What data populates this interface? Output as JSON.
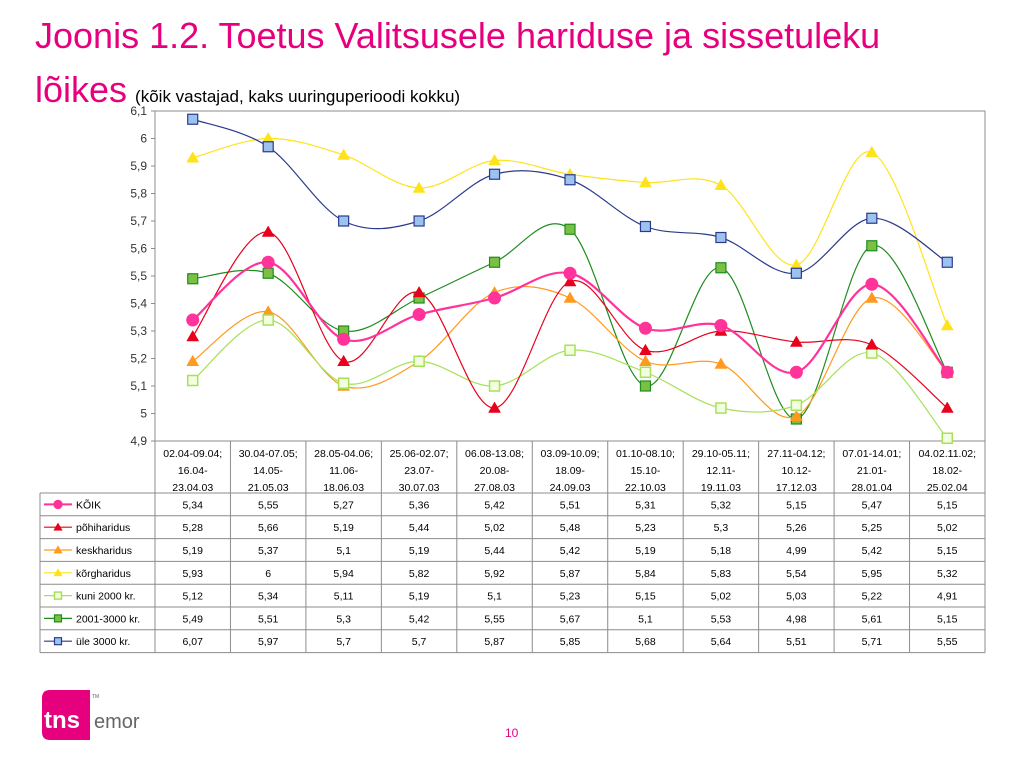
{
  "title": {
    "line1": "Joonis 1.2. Toetus Valitsusele hariduse ja sissetuleku",
    "line2": "lõikes",
    "subtitle": "(kõik vastajad, kaks uuringuperioodi kokku)"
  },
  "page_number": "10",
  "logo": {
    "left": "tns",
    "right": "emor",
    "tm": "TM"
  },
  "colors": {
    "accent": "#e6007e"
  },
  "chart_data": {
    "type": "line",
    "ylim": [
      4.9,
      6.1
    ],
    "yticks": [
      "4,9",
      "5",
      "5,1",
      "5,2",
      "5,3",
      "5,4",
      "5,5",
      "5,6",
      "5,7",
      "5,8",
      "5,9",
      "6",
      "6,1"
    ],
    "categories": [
      [
        "02.04-09.04;",
        "16.04-",
        "23.04.03"
      ],
      [
        "30.04-07.05;",
        "14.05-",
        "21.05.03"
      ],
      [
        "28.05-04.06;",
        "11.06-",
        "18.06.03"
      ],
      [
        "25.06-02.07;",
        "23.07-",
        "30.07.03"
      ],
      [
        "06.08-13.08;",
        "20.08-",
        "27.08.03"
      ],
      [
        "03.09-10.09;",
        "18.09-",
        "24.09.03"
      ],
      [
        "01.10-08.10;",
        "15.10-",
        "22.10.03"
      ],
      [
        "29.10-05.11;",
        "12.11-",
        "19.11.03"
      ],
      [
        "27.11-04.12;",
        "10.12-",
        "17.12.03"
      ],
      [
        "07.01-14.01;",
        "21.01-",
        "28.01.04"
      ],
      [
        "04.02.11.02;",
        "18.02-",
        "25.02.04"
      ]
    ],
    "series": [
      {
        "name": "KÕIK",
        "color": "#ff3399",
        "marker": "circle",
        "values": [
          5.34,
          5.55,
          5.27,
          5.36,
          5.42,
          5.51,
          5.31,
          5.32,
          5.15,
          5.47,
          5.15
        ],
        "labels": [
          "5,34",
          "5,55",
          "5,27",
          "5,36",
          "5,42",
          "5,51",
          "5,31",
          "5,32",
          "5,15",
          "5,47",
          "5,15"
        ]
      },
      {
        "name": "põhiharidus",
        "color": "#e8001c",
        "marker": "triangle",
        "values": [
          5.28,
          5.66,
          5.19,
          5.44,
          5.02,
          5.48,
          5.23,
          5.3,
          5.26,
          5.25,
          5.02
        ],
        "labels": [
          "5,28",
          "5,66",
          "5,19",
          "5,44",
          "5,02",
          "5,48",
          "5,23",
          "5,3",
          "5,26",
          "5,25",
          "5,02"
        ]
      },
      {
        "name": "keskharidus",
        "color": "#ff9a1f",
        "marker": "triangle",
        "values": [
          5.19,
          5.37,
          5.1,
          5.19,
          5.44,
          5.42,
          5.19,
          5.18,
          4.99,
          5.42,
          5.15
        ],
        "labels": [
          "5,19",
          "5,37",
          "5,1",
          "5,19",
          "5,44",
          "5,42",
          "5,19",
          "5,18",
          "4,99",
          "5,42",
          "5,15"
        ]
      },
      {
        "name": "kõrgharidus",
        "color": "#ffe31a",
        "marker": "triangle",
        "values": [
          5.93,
          6,
          5.94,
          5.82,
          5.92,
          5.87,
          5.84,
          5.83,
          5.54,
          5.95,
          5.32
        ],
        "labels": [
          "5,93",
          "6",
          "5,94",
          "5,82",
          "5,92",
          "5,87",
          "5,84",
          "5,83",
          "5,54",
          "5,95",
          "5,32"
        ]
      },
      {
        "name": "kuni 2000 kr.",
        "color": "#a8e05a",
        "marker": "square-open",
        "values": [
          5.12,
          5.34,
          5.11,
          5.19,
          5.1,
          5.23,
          5.15,
          5.02,
          5.03,
          5.22,
          4.91
        ],
        "labels": [
          "5,12",
          "5,34",
          "5,11",
          "5,19",
          "5,1",
          "5,23",
          "5,15",
          "5,02",
          "5,03",
          "5,22",
          "4,91"
        ]
      },
      {
        "name": "2001-3000 kr.",
        "color": "#1f8c1f",
        "fill": "#7ac143",
        "marker": "square",
        "values": [
          5.49,
          5.51,
          5.3,
          5.42,
          5.55,
          5.67,
          5.1,
          5.53,
          4.98,
          5.61,
          5.15
        ],
        "labels": [
          "5,49",
          "5,51",
          "5,3",
          "5,42",
          "5,55",
          "5,67",
          "5,1",
          "5,53",
          "4,98",
          "5,61",
          "5,15"
        ]
      },
      {
        "name": "üle 3000 kr.",
        "color": "#2b3a8c",
        "fill": "#9cc2f0",
        "marker": "square",
        "values": [
          6.07,
          5.97,
          5.7,
          5.7,
          5.87,
          5.85,
          5.68,
          5.64,
          5.51,
          5.71,
          5.55
        ],
        "labels": [
          "6,07",
          "5,97",
          "5,7",
          "5,7",
          "5,87",
          "5,85",
          "5,68",
          "5,64",
          "5,51",
          "5,71",
          "5,55"
        ]
      }
    ]
  }
}
